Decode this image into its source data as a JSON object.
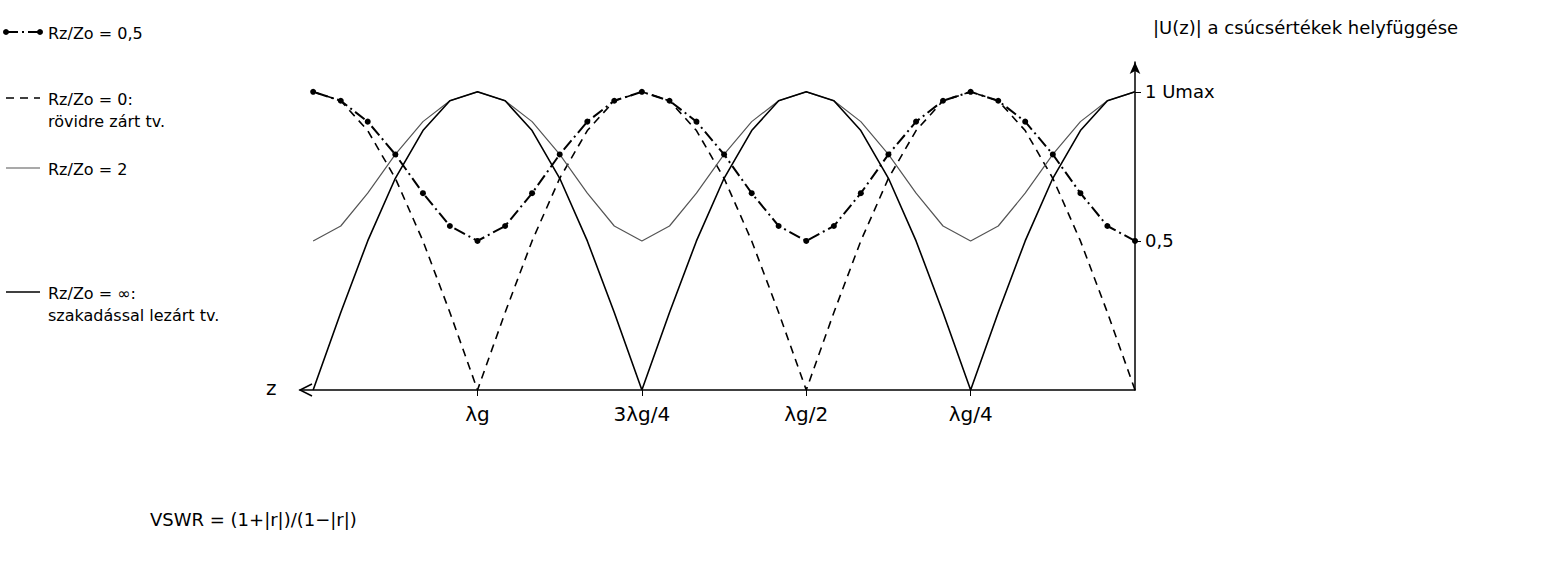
{
  "chart_data": {
    "type": "line",
    "y_label": "|U(z)| a csúcsértékek helyfüggése",
    "x_label": "z",
    "annotations": [
      "VSWR = (1+|r|)/(1−|r|)"
    ],
    "x": [
      0,
      0.042,
      0.083,
      0.125,
      0.167,
      0.208,
      0.25,
      0.292,
      0.333,
      0.375,
      0.417,
      0.458,
      0.5,
      0.542,
      0.583,
      0.625,
      0.667,
      0.708,
      0.75,
      0.792,
      0.833,
      0.875,
      0.917,
      0.958,
      1,
      1.042,
      1.083,
      1.125,
      1.167,
      1.208,
      1.25
    ],
    "xlim": [
      0,
      1.27
    ],
    "xticks": [
      {
        "value": 0.25,
        "label": "λg/4"
      },
      {
        "value": 0.5,
        "label": "λg/2"
      },
      {
        "value": 0.75,
        "label": "3λg/4"
      },
      {
        "value": 1,
        "label": "λg"
      }
    ],
    "ylim": [
      0,
      1.1
    ],
    "yticks": [
      {
        "value": 0.5,
        "label": "0,5"
      },
      {
        "value": 1,
        "label": "1 Umax"
      }
    ],
    "grid": false,
    "series": [
      {
        "name": "Rz/Zo = 0,5",
        "color": "#000000",
        "line_style": "dashdot",
        "marker": "circle",
        "values": [
          0.5,
          0.55,
          0.66,
          0.79,
          0.9,
          0.97,
          1,
          0.97,
          0.9,
          0.79,
          0.66,
          0.55,
          0.5,
          0.55,
          0.66,
          0.79,
          0.9,
          0.97,
          1,
          0.97,
          0.9,
          0.79,
          0.66,
          0.55,
          0.5,
          0.55,
          0.66,
          0.79,
          0.9,
          0.97,
          1
        ]
      },
      {
        "name": "Rz/Zo = 0: rövidre zárt tv.",
        "color": "#000000",
        "line_style": "dashed",
        "marker": "none",
        "values": [
          0,
          0.26,
          0.5,
          0.71,
          0.87,
          0.97,
          1,
          0.97,
          0.87,
          0.71,
          0.5,
          0.26,
          0,
          0.26,
          0.5,
          0.71,
          0.87,
          0.97,
          1,
          0.97,
          0.87,
          0.71,
          0.5,
          0.26,
          0,
          0.26,
          0.5,
          0.71,
          0.87,
          0.97,
          1
        ]
      },
      {
        "name": "Rz/Zo = 2",
        "color": "#555555",
        "line_style": "solid",
        "marker": "none",
        "values": [
          1,
          0.97,
          0.9,
          0.79,
          0.66,
          0.55,
          0.5,
          0.55,
          0.66,
          0.79,
          0.9,
          0.97,
          1,
          0.97,
          0.9,
          0.79,
          0.66,
          0.55,
          0.5,
          0.55,
          0.66,
          0.79,
          0.9,
          0.97,
          1,
          0.97,
          0.9,
          0.79,
          0.66,
          0.55,
          0.5
        ]
      },
      {
        "name": "Rz/Zo = ∞: szakadással lezárt tv.",
        "color": "#000000",
        "line_style": "solid",
        "marker": "none",
        "values": [
          1,
          0.97,
          0.87,
          0.71,
          0.5,
          0.26,
          0,
          0.26,
          0.5,
          0.71,
          0.87,
          0.97,
          1,
          0.97,
          0.87,
          0.71,
          0.5,
          0.26,
          0,
          0.26,
          0.5,
          0.71,
          0.87,
          0.97,
          1,
          0.97,
          0.87,
          0.71,
          0.5,
          0.26,
          0
        ]
      }
    ]
  }
}
